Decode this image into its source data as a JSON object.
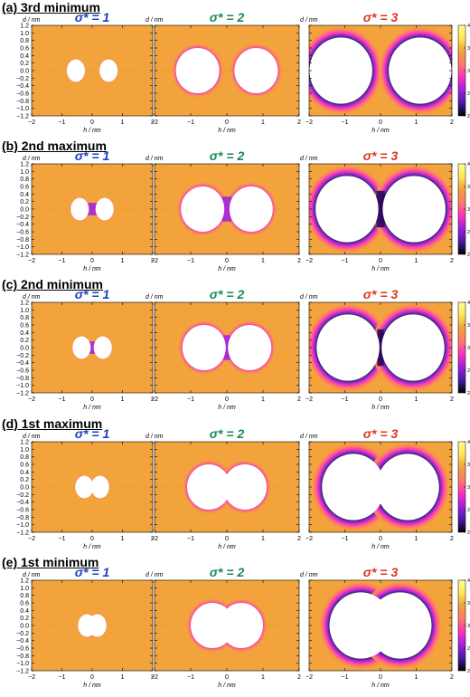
{
  "figure": {
    "axis_label_y": "d / nm",
    "axis_label_x": "h / nm",
    "x_ticks": [
      "−2",
      "−1",
      "0",
      "1",
      "2"
    ],
    "y_ticks": [
      "1.2",
      "1.0",
      "0.8",
      "0.6",
      "0.4",
      "0.2",
      "0.0",
      "−0.2",
      "−0.4",
      "−0.6",
      "−0.8",
      "−1.0",
      "−1.2"
    ],
    "colorbar_ticks": [
      "4.0",
      "3.6",
      "3.2",
      "2.8",
      "2.4"
    ],
    "panel_titles": [
      {
        "label": "σ* = 1",
        "color": "#1a3fc4"
      },
      {
        "label": "σ* = 2",
        "color": "#1a8a55"
      },
      {
        "label": "σ* = 3",
        "color": "#e0321e"
      }
    ]
  },
  "rows": [
    {
      "title": "(a) 3rd minimum"
    },
    {
      "title": "(b) 2nd maximum"
    },
    {
      "title": "(c) 2nd minimum"
    },
    {
      "title": "(d) 1st maximum"
    },
    {
      "title": "(e) 1st minimum"
    }
  ],
  "chart_data": {
    "type": "heatmap",
    "x_range": [
      -2,
      2
    ],
    "y_range": [
      -1.2,
      1.2
    ],
    "colorbar_range": [
      2.4,
      4.0
    ],
    "colormap": [
      "#000000",
      "#4a1aa8",
      "#a020e0",
      "#ff30c0",
      "#ff7a6a",
      "#f0a040",
      "#ffe650",
      "#ffff90"
    ],
    "background_color": "#f2a33c",
    "panels": [
      {
        "row": 0,
        "sigma": 1,
        "sphere_radius_nm": 0.3,
        "separation_nm": 1.08
      },
      {
        "row": 0,
        "sigma": 2,
        "sphere_radius_nm": 0.6,
        "separation_nm": 1.62
      },
      {
        "row": 0,
        "sigma": 3,
        "sphere_radius_nm": 0.88,
        "separation_nm": 2.22
      },
      {
        "row": 1,
        "sigma": 1,
        "sphere_radius_nm": 0.3,
        "separation_nm": 0.82
      },
      {
        "row": 1,
        "sigma": 2,
        "sphere_radius_nm": 0.6,
        "separation_nm": 1.34
      },
      {
        "row": 1,
        "sigma": 3,
        "sphere_radius_nm": 0.88,
        "separation_nm": 1.88
      },
      {
        "row": 2,
        "sigma": 1,
        "sphere_radius_nm": 0.3,
        "separation_nm": 0.7
      },
      {
        "row": 2,
        "sigma": 2,
        "sphere_radius_nm": 0.6,
        "separation_nm": 1.26
      },
      {
        "row": 2,
        "sigma": 3,
        "sphere_radius_nm": 0.88,
        "separation_nm": 1.82
      },
      {
        "row": 3,
        "sigma": 1,
        "sphere_radius_nm": 0.3,
        "separation_nm": 0.52
      },
      {
        "row": 3,
        "sigma": 2,
        "sphere_radius_nm": 0.6,
        "separation_nm": 1.0
      },
      {
        "row": 3,
        "sigma": 3,
        "sphere_radius_nm": 0.88,
        "separation_nm": 1.52
      },
      {
        "row": 4,
        "sigma": 1,
        "sphere_radius_nm": 0.3,
        "separation_nm": 0.34
      },
      {
        "row": 4,
        "sigma": 2,
        "sphere_radius_nm": 0.6,
        "separation_nm": 0.8
      },
      {
        "row": 4,
        "sigma": 3,
        "sphere_radius_nm": 0.88,
        "separation_nm": 1.1
      }
    ]
  }
}
